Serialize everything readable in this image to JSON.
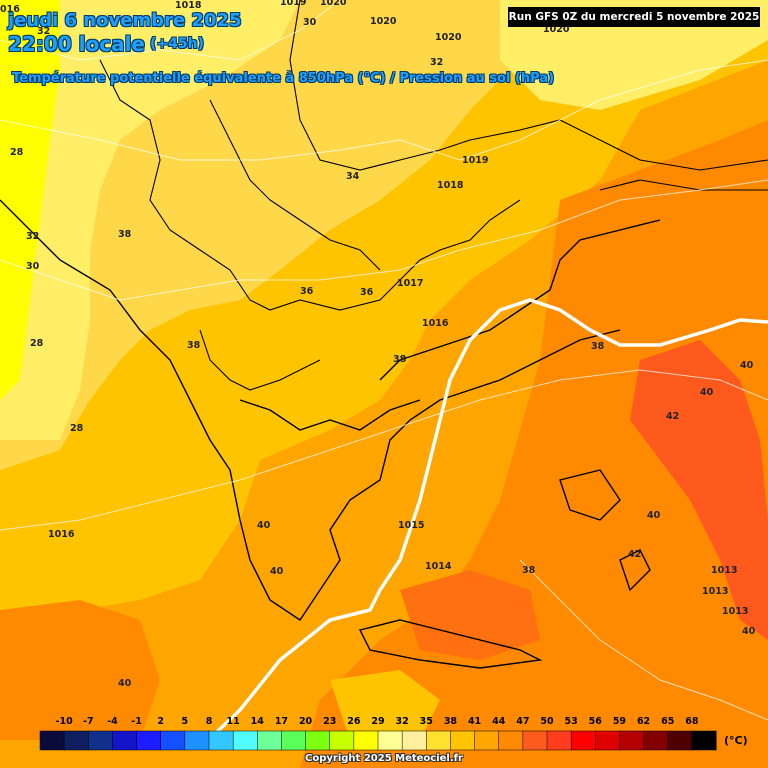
{
  "header": {
    "date": "jeudi 6 novembre 2025",
    "time": "22:00 locale",
    "lead": "(+45h)",
    "variable": "Température potentielle équivalente à 850hPa (°C) / Pression au sol (hPa)"
  },
  "run_info": "Run GFS 0Z du mercredi 5 novembre 2025",
  "copyright": "Copyright 2025 Meteociel.fr",
  "legend": {
    "unit": "(°C)",
    "ticks": [
      "-10",
      "-7",
      "-4",
      "-1",
      "2",
      "5",
      "8",
      "11",
      "14",
      "17",
      "20",
      "23",
      "26",
      "29",
      "32",
      "35",
      "38",
      "41",
      "44",
      "47",
      "50",
      "53",
      "56",
      "59",
      "62",
      "65",
      "68"
    ],
    "colors": [
      "#0a0a3c",
      "#0d1f5e",
      "#10308a",
      "#1414c8",
      "#1c1cff",
      "#1450ff",
      "#1e90ff",
      "#32c8ff",
      "#50fcff",
      "#6cff9a",
      "#5aff5a",
      "#7cff10",
      "#c8ff00",
      "#ffff00",
      "#ffff96",
      "#fff0a0",
      "#ffe030",
      "#ffc400",
      "#ffa500",
      "#ff8a00",
      "#ff5a1e",
      "#ff3c1e",
      "#ff0000",
      "#e00000",
      "#b40000",
      "#820000",
      "#500000",
      "#000000"
    ]
  },
  "map_labels": [
    {
      "text": "016",
      "kind": "pressure"
    },
    {
      "text": "1019",
      "kind": "pressure"
    },
    {
      "text": "1020",
      "kind": "pressure"
    },
    {
      "text": "1018",
      "kind": "pressure"
    },
    {
      "text": "30",
      "kind": "temp"
    },
    {
      "text": "1020",
      "kind": "pressure"
    },
    {
      "text": "32",
      "kind": "temp"
    },
    {
      "text": "1020",
      "kind": "pressure"
    },
    {
      "text": "1020",
      "kind": "pressure"
    },
    {
      "text": "32",
      "kind": "temp"
    },
    {
      "text": "28",
      "kind": "temp"
    },
    {
      "text": "1019",
      "kind": "pressure"
    },
    {
      "text": "34",
      "kind": "temp"
    },
    {
      "text": "1018",
      "kind": "pressure"
    },
    {
      "text": "38",
      "kind": "temp"
    },
    {
      "text": "32",
      "kind": "temp"
    },
    {
      "text": "30",
      "kind": "temp"
    },
    {
      "text": "1017",
      "kind": "pressure"
    },
    {
      "text": "36",
      "kind": "temp"
    },
    {
      "text": "36",
      "kind": "temp"
    },
    {
      "text": "1016",
      "kind": "pressure"
    },
    {
      "text": "28",
      "kind": "temp"
    },
    {
      "text": "38",
      "kind": "temp"
    },
    {
      "text": "38",
      "kind": "temp"
    },
    {
      "text": "38",
      "kind": "temp"
    },
    {
      "text": "40",
      "kind": "temp"
    },
    {
      "text": "40",
      "kind": "temp"
    },
    {
      "text": "42",
      "kind": "temp"
    },
    {
      "text": "28",
      "kind": "temp"
    },
    {
      "text": "40",
      "kind": "temp"
    },
    {
      "text": "1015",
      "kind": "pressure"
    },
    {
      "text": "1016",
      "kind": "pressure"
    },
    {
      "text": "40",
      "kind": "temp"
    },
    {
      "text": "40",
      "kind": "temp"
    },
    {
      "text": "1014",
      "kind": "pressure"
    },
    {
      "text": "38",
      "kind": "temp"
    },
    {
      "text": "42",
      "kind": "temp"
    },
    {
      "text": "1013",
      "kind": "pressure"
    },
    {
      "text": "1013",
      "kind": "pressure"
    },
    {
      "text": "1013",
      "kind": "pressure"
    },
    {
      "text": "40",
      "kind": "temp"
    },
    {
      "text": "40",
      "kind": "temp"
    }
  ]
}
